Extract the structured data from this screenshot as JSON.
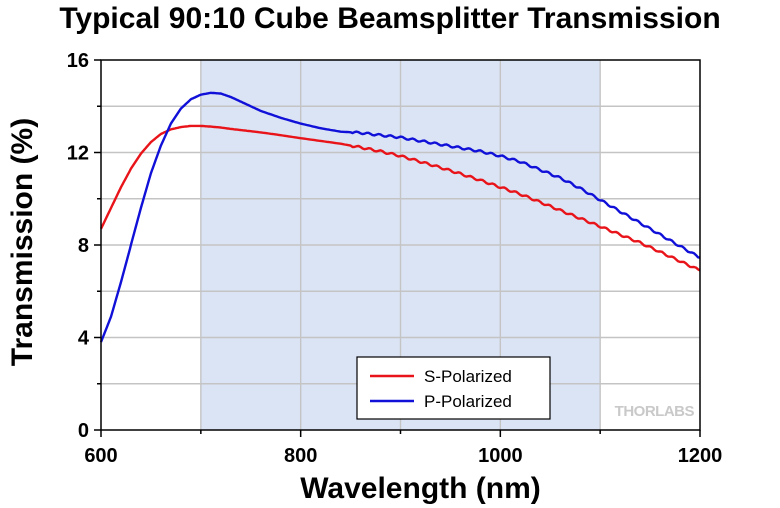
{
  "chart_data": {
    "type": "line",
    "title": "Typical 90:10 Cube Beamsplitter Transmission",
    "xlabel": "Wavelength (nm)",
    "ylabel": "Transmission (%)",
    "xlim": [
      600,
      1200
    ],
    "ylim": [
      0,
      16
    ],
    "xticks": [
      600,
      800,
      1000,
      1200
    ],
    "yticks": [
      0,
      4,
      8,
      12,
      16
    ],
    "grid": true,
    "shaded_region": {
      "x": [
        700,
        1100
      ],
      "color": "#dbe4f5"
    },
    "legend_position": "bottom-center",
    "series": [
      {
        "name": "S-Polarized",
        "color": "#e8141a",
        "x": [
          600,
          610,
          620,
          630,
          640,
          650,
          660,
          670,
          680,
          690,
          700,
          710,
          720,
          730,
          740,
          750,
          760,
          780,
          800,
          820,
          840,
          860,
          880,
          900,
          920,
          940,
          960,
          980,
          1000,
          1020,
          1040,
          1060,
          1080,
          1100,
          1120,
          1140,
          1160,
          1180,
          1200
        ],
        "values": [
          8.7,
          9.6,
          10.5,
          11.3,
          11.95,
          12.45,
          12.8,
          13.0,
          13.1,
          13.15,
          13.15,
          13.12,
          13.08,
          13.02,
          12.97,
          12.92,
          12.87,
          12.75,
          12.62,
          12.5,
          12.38,
          12.22,
          12.05,
          11.85,
          11.6,
          11.35,
          11.08,
          10.8,
          10.5,
          10.2,
          9.85,
          9.5,
          9.15,
          8.8,
          8.45,
          8.1,
          7.7,
          7.3,
          6.9
        ]
      },
      {
        "name": "P-Polarized",
        "color": "#1010d8",
        "x": [
          600,
          610,
          620,
          630,
          640,
          650,
          660,
          670,
          680,
          690,
          700,
          710,
          720,
          730,
          740,
          750,
          760,
          780,
          800,
          820,
          840,
          860,
          880,
          900,
          920,
          940,
          960,
          980,
          1000,
          1020,
          1040,
          1060,
          1080,
          1100,
          1120,
          1140,
          1160,
          1180,
          1200
        ],
        "values": [
          3.8,
          4.9,
          6.4,
          8.0,
          9.6,
          11.1,
          12.3,
          13.25,
          13.9,
          14.3,
          14.5,
          14.58,
          14.55,
          14.4,
          14.2,
          14.0,
          13.8,
          13.5,
          13.25,
          13.05,
          12.9,
          12.85,
          12.75,
          12.65,
          12.5,
          12.35,
          12.2,
          12.05,
          11.85,
          11.6,
          11.25,
          10.9,
          10.45,
          9.95,
          9.45,
          8.95,
          8.45,
          7.95,
          7.45
        ]
      }
    ]
  },
  "watermark": "THORLABS"
}
